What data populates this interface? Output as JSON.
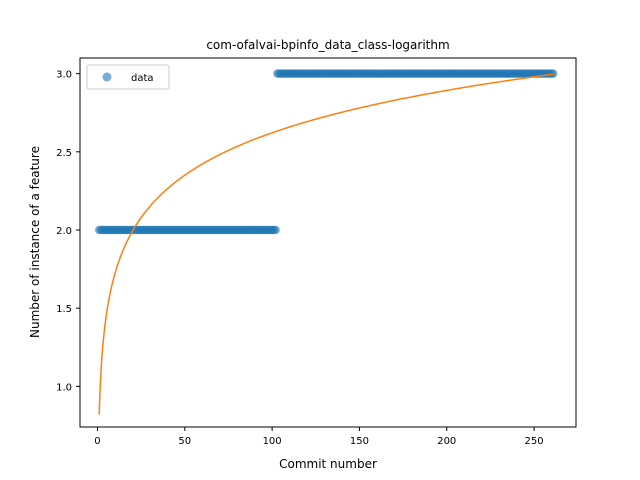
{
  "chart_data": {
    "type": "scatter",
    "title": "com-ofalvai-bpinfo_data_class-logarithm",
    "xlabel": "Commit number",
    "ylabel": "Number of instance of a feature",
    "xlim": [
      -10,
      274
    ],
    "ylim": [
      0.74,
      3.1
    ],
    "xticks": [
      0,
      50,
      100,
      150,
      200,
      250
    ],
    "yticks": [
      1.0,
      1.5,
      2.0,
      2.5,
      3.0
    ],
    "xtick_labels": [
      "0",
      "50",
      "100",
      "150",
      "200",
      "250"
    ],
    "ytick_labels": [
      "1.0",
      "1.5",
      "2.0",
      "2.5",
      "3.0"
    ],
    "legend": {
      "position": "top-left",
      "entries": [
        "data"
      ]
    },
    "series": [
      {
        "name": "data",
        "kind": "points",
        "color": "#1f77b4",
        "segments": [
          {
            "x_start": 1,
            "x_end": 102,
            "y": 2
          },
          {
            "x_start": 103,
            "x_end": 261,
            "y": 3
          }
        ]
      },
      {
        "kind": "line",
        "color": "#ff7f0e",
        "fit": {
          "form": "a + b*ln(x)",
          "a": 0.82,
          "b": 0.3912,
          "x_start": 1,
          "x_end": 261
        }
      }
    ]
  }
}
